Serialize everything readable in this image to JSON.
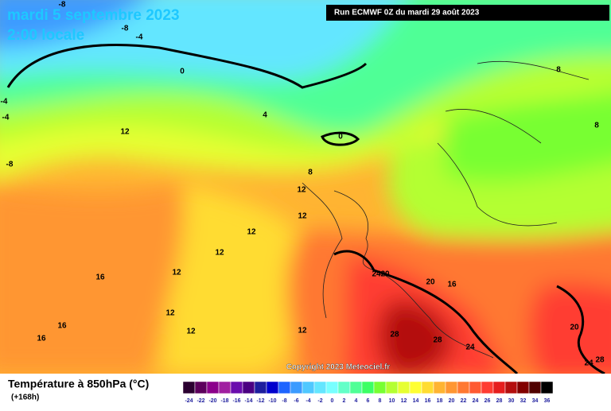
{
  "header": {
    "date": "mardi 5 septembre 2023",
    "time": "2:00 locale",
    "run": "Run ECMWF 0Z du mardi 29 août 2023"
  },
  "copyright": "Copyright 2023 Meteociel.fr",
  "footer": {
    "title": "Température à 850hPa (°C)",
    "lead": "(+168h)"
  },
  "scale": {
    "labels": [
      -24,
      -22,
      -20,
      -18,
      -16,
      -14,
      -12,
      -10,
      -8,
      -6,
      -4,
      -2,
      0,
      2,
      4,
      6,
      8,
      10,
      12,
      14,
      16,
      18,
      20,
      22,
      24,
      26,
      28,
      30,
      32,
      34,
      36
    ],
    "colors": [
      "#2b0030",
      "#5c005c",
      "#8b008b",
      "#a020a0",
      "#6a0dad",
      "#4b0082",
      "#1e1e9e",
      "#0000cd",
      "#1e64ff",
      "#3c9bff",
      "#50c8ff",
      "#64e6ff",
      "#78ffff",
      "#64ffc8",
      "#50ff96",
      "#3cff64",
      "#78ff32",
      "#b4ff32",
      "#e6ff32",
      "#ffff32",
      "#ffdc32",
      "#ffb432",
      "#ff9632",
      "#ff7832",
      "#ff5a32",
      "#ff3c32",
      "#e61e1e",
      "#b40f0f",
      "#820000",
      "#500000",
      "#000000"
    ]
  },
  "contour_labels": [
    "-8",
    "-8",
    "-4",
    "0",
    "-4",
    "-4",
    "4",
    "0",
    "12",
    "-8",
    "8",
    "12",
    "12",
    "12",
    "12",
    "12",
    "16",
    "12",
    "16",
    "16",
    "12",
    "12",
    "8",
    "8",
    "24",
    "20",
    "20",
    "16",
    "28",
    "28",
    "24",
    "20",
    "24",
    "28"
  ]
}
